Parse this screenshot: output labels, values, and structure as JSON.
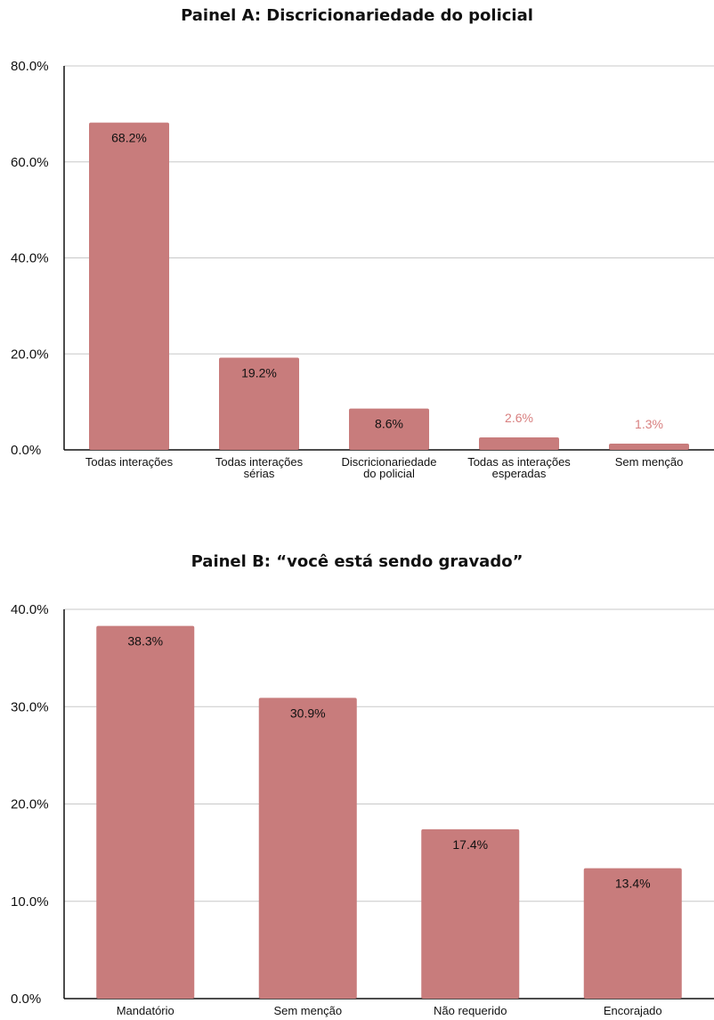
{
  "colors": {
    "bar": "#c87c7c",
    "label_inside": "#111111",
    "label_outside": "#d87f7f",
    "grid": "#c8c8c8",
    "axis": "#111111"
  },
  "chart_data": [
    {
      "type": "bar",
      "title": "Painel A: Discricionariedade do policial",
      "categories": [
        "Todas interações",
        "Todas interações sérias",
        "Discricionariedade do policial",
        "Todas as interações esperadas",
        "Sem menção"
      ],
      "category_lines": [
        [
          "Todas interações"
        ],
        [
          "Todas interações",
          "sérias"
        ],
        [
          "Discricionariedade",
          "do policial"
        ],
        [
          "Todas as interações",
          "esperadas"
        ],
        [
          "Sem menção"
        ]
      ],
      "values": [
        68.2,
        19.2,
        8.6,
        2.6,
        1.3
      ],
      "value_labels": [
        "68.2%",
        "19.2%",
        "8.6%",
        "2.6%",
        "1.3%"
      ],
      "yticks": [
        0,
        20,
        40,
        60,
        80
      ],
      "ytick_labels": [
        "0.0%",
        "20.0%",
        "40.0%",
        "60.0%",
        "80.0%"
      ],
      "ylim": [
        0,
        80
      ],
      "xlabel": "",
      "ylabel": "",
      "grid": true,
      "legend": "none"
    },
    {
      "type": "bar",
      "title": "Painel B: “você está sendo gravado”",
      "categories": [
        "Mandatório",
        "Sem menção",
        "Não requerido",
        "Encorajado"
      ],
      "category_lines": [
        [
          "Mandatório"
        ],
        [
          "Sem menção"
        ],
        [
          "Não requerido"
        ],
        [
          "Encorajado"
        ]
      ],
      "values": [
        38.3,
        30.9,
        17.4,
        13.4
      ],
      "value_labels": [
        "38.3%",
        "30.9%",
        "17.4%",
        "13.4%"
      ],
      "yticks": [
        0,
        10,
        20,
        30,
        40
      ],
      "ytick_labels": [
        "0.0%",
        "10.0%",
        "20.0%",
        "30.0%",
        "40.0%"
      ],
      "ylim": [
        0,
        40
      ],
      "xlabel": "",
      "ylabel": "",
      "grid": true,
      "legend": "none"
    }
  ]
}
